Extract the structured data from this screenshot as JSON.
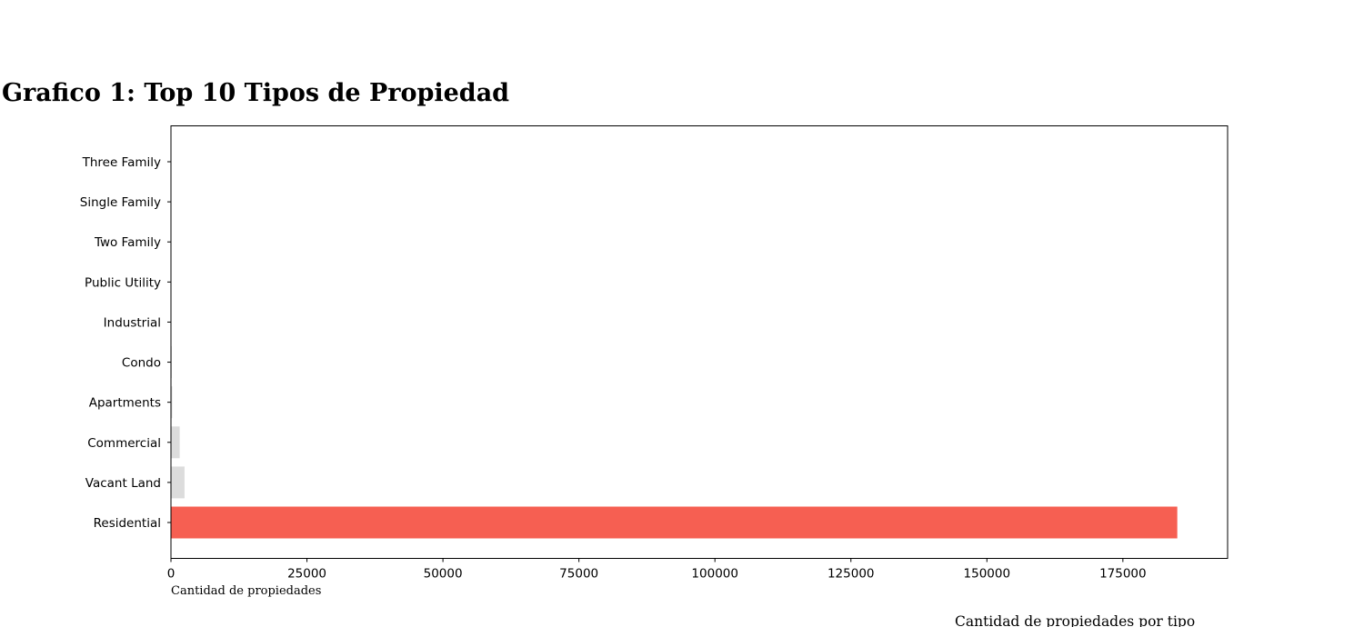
{
  "chart_data": {
    "type": "bar",
    "orientation": "horizontal",
    "title": "Grafico 1: Top 10 Tipos de Propiedad",
    "xlabel": "Cantidad de propiedades",
    "ylabel": "",
    "caption": "Cantidad de propiedades por tipo",
    "categories": [
      "Residential",
      "Vacant Land",
      "Commercial",
      "Apartments",
      "Condo",
      "Industrial",
      "Public Utility",
      "Two Family",
      "Single Family",
      "Three Family"
    ],
    "values": [
      185000,
      2500,
      1600,
      250,
      150,
      60,
      30,
      15,
      10,
      5
    ],
    "xlim": [
      0,
      194250
    ],
    "xticks": [
      0,
      25000,
      50000,
      75000,
      100000,
      125000,
      150000,
      175000
    ],
    "grid": false,
    "legend": "none",
    "colors": {
      "highlight": "#f65f52",
      "default": "#dcdcdc",
      "axis": "#000000"
    }
  }
}
